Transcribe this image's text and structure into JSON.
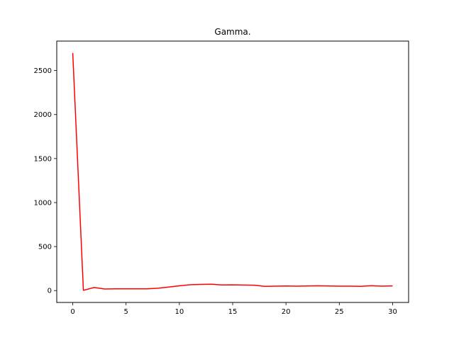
{
  "chart_data": {
    "type": "line",
    "title": "Gamma.",
    "xlabel": "",
    "ylabel": "",
    "xlim": [
      -1.5,
      31.5
    ],
    "ylim": [
      -135,
      2835
    ],
    "xticks": [
      0,
      5,
      10,
      15,
      20,
      25,
      30
    ],
    "yticks": [
      0,
      500,
      1000,
      1500,
      2000,
      2500
    ],
    "grid": false,
    "series": [
      {
        "color": "#ff0000",
        "x": [
          0,
          1,
          2,
          3,
          4,
          5,
          6,
          7,
          8,
          9,
          10,
          11,
          12,
          13,
          14,
          15,
          16,
          17,
          18,
          19,
          20,
          21,
          22,
          23,
          24,
          25,
          26,
          27,
          28,
          29,
          30
        ],
        "y": [
          2700,
          3,
          35,
          18,
          20,
          20,
          20,
          20,
          27,
          40,
          54,
          66,
          70,
          72,
          64,
          65,
          63,
          61,
          48,
          50,
          52,
          50,
          52,
          54,
          52,
          50,
          50,
          48,
          55,
          50,
          53
        ]
      }
    ]
  }
}
